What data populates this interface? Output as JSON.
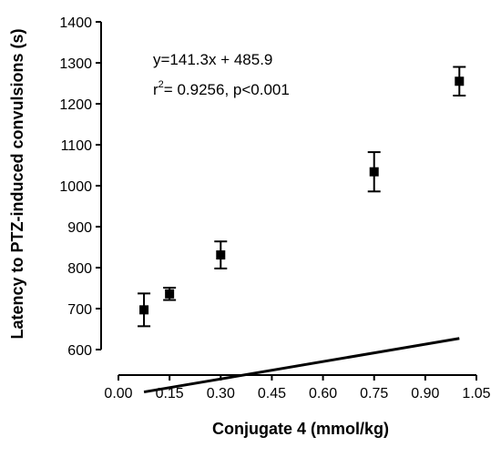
{
  "chart_data": {
    "type": "scatter",
    "xlabel": "Conjugate 4 (mmol/kg)",
    "ylabel": "Latency to PTZ-induced convulsions (s)",
    "xlim": [
      0.0,
      1.05
    ],
    "ylim": [
      600,
      1400
    ],
    "xticks": [
      0.0,
      0.15,
      0.3,
      0.45,
      0.6,
      0.75,
      0.9,
      1.05
    ],
    "xtick_labels": [
      "0.00",
      "0.15",
      "0.30",
      "0.45",
      "0.60",
      "0.75",
      "0.90",
      "1.05"
    ],
    "yticks": [
      600,
      700,
      800,
      900,
      1000,
      1100,
      1200,
      1300,
      1400
    ],
    "ytick_labels": [
      "600",
      "700",
      "800",
      "900",
      "1000",
      "1100",
      "1200",
      "1300",
      "1400"
    ],
    "points": [
      {
        "x": 0.075,
        "y": 697,
        "err": 40
      },
      {
        "x": 0.15,
        "y": 736,
        "err": 15
      },
      {
        "x": 0.3,
        "y": 831,
        "err": 33
      },
      {
        "x": 0.75,
        "y": 1034,
        "err": 48
      },
      {
        "x": 1.0,
        "y": 1255,
        "err": 35
      }
    ],
    "fit": {
      "slope": 141.3,
      "intercept": 485.9,
      "x_range": [
        0.075,
        1.0
      ]
    },
    "annotation": {
      "equation": "y=141.3x + 485.9",
      "r_prefix": "r",
      "r_sup": "2",
      "r_rest": "= 0.9256, p<0.001"
    },
    "grid": false,
    "colors": {
      "marks": "#000000",
      "background": "#ffffff"
    }
  }
}
